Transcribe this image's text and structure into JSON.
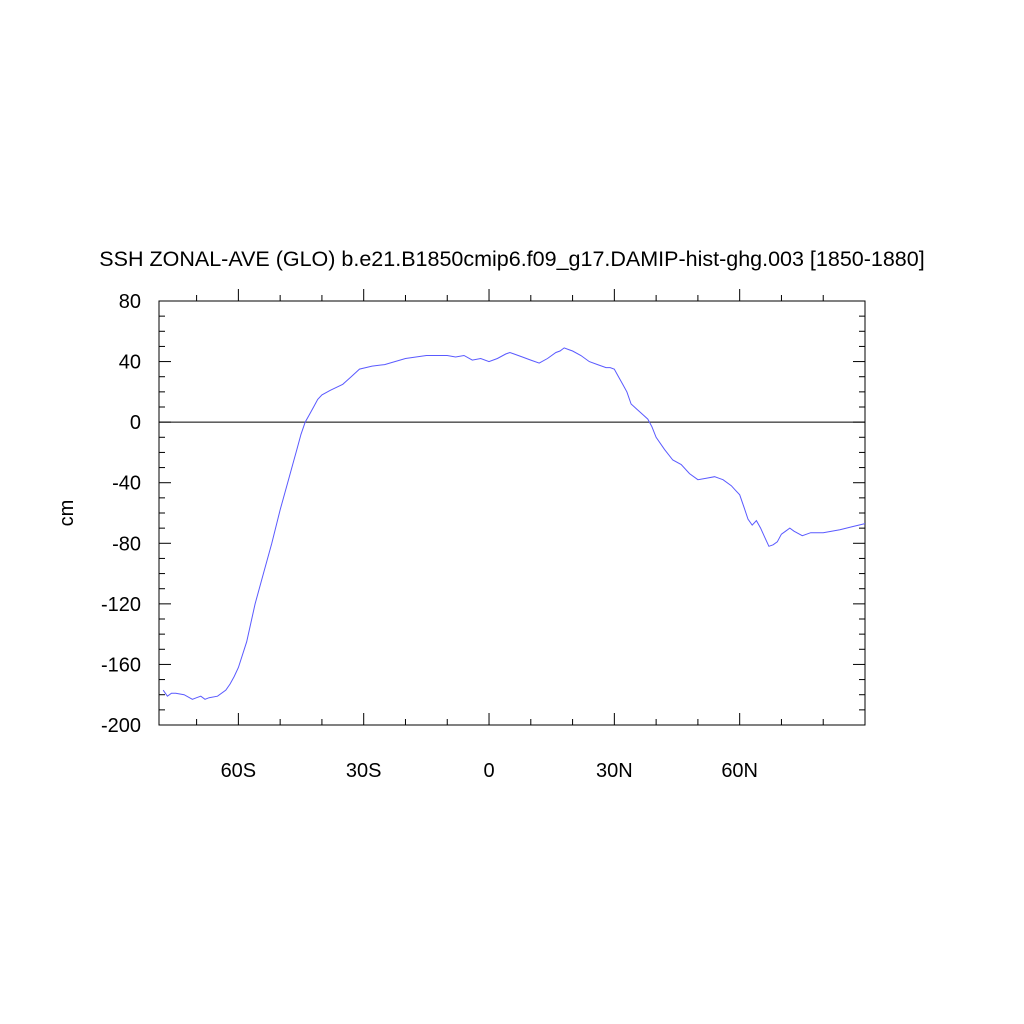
{
  "chart_data": {
    "type": "line",
    "title": "SSH ZONAL-AVE (GLO) b.e21.B1850cmip6.f09_g17.DAMIP-hist-ghg.003 [1850-1880]",
    "xlabel": "",
    "ylabel": "cm",
    "xlim": [
      -79,
      90
    ],
    "ylim": [
      -200,
      80
    ],
    "x_ticks": [
      {
        "value": -60,
        "label": "60S"
      },
      {
        "value": -30,
        "label": "30S"
      },
      {
        "value": 0,
        "label": "0"
      },
      {
        "value": 30,
        "label": "30N"
      },
      {
        "value": 60,
        "label": "60N"
      }
    ],
    "y_ticks": [
      {
        "value": 80,
        "label": "80"
      },
      {
        "value": 40,
        "label": "40"
      },
      {
        "value": 0,
        "label": "0"
      },
      {
        "value": -40,
        "label": "-40"
      },
      {
        "value": -80,
        "label": "-80"
      },
      {
        "value": -120,
        "label": "-120"
      },
      {
        "value": -160,
        "label": "-160"
      },
      {
        "value": -200,
        "label": "-200"
      }
    ],
    "reference_line": 0,
    "grid": false,
    "series": [
      {
        "color": "#5a5aff",
        "x": [
          -78,
          -77,
          -76,
          -75,
          -73,
          -71,
          -70,
          -69,
          -68,
          -67,
          -65,
          -63,
          -62,
          -61,
          -60,
          -58,
          -56,
          -54,
          -52,
          -50,
          -48,
          -47,
          -46,
          -45,
          -44,
          -43,
          -42,
          -41,
          -40,
          -38,
          -35,
          -33,
          -31,
          -28,
          -25,
          -20,
          -15,
          -10,
          -8,
          -6,
          -4,
          -2,
          0,
          2,
          4,
          5,
          6,
          8,
          10,
          12,
          14,
          16,
          17,
          18,
          19,
          20,
          22,
          24,
          26,
          28,
          29,
          30,
          31,
          32,
          33,
          34,
          36,
          38,
          39,
          40,
          42,
          44,
          46,
          48,
          50,
          52,
          54,
          55,
          56,
          58,
          59,
          60,
          61,
          62,
          63,
          64,
          65,
          66,
          67,
          68,
          69,
          70,
          71,
          72,
          73,
          75,
          77,
          80,
          84,
          87,
          90
        ],
        "y": [
          -177,
          -181,
          -179,
          -179,
          -180,
          -183,
          -182,
          -181,
          -183,
          -182,
          -181,
          -177,
          -173,
          -168,
          -162,
          -145,
          -120,
          -100,
          -80,
          -58,
          -38,
          -28,
          -18,
          -8,
          0,
          5,
          10,
          15,
          18,
          21,
          25,
          30,
          35,
          37,
          38,
          42,
          44,
          44,
          43,
          44,
          41,
          42,
          40,
          42,
          45,
          46,
          45,
          43,
          41,
          39,
          42,
          46,
          47,
          49,
          48,
          47,
          44,
          40,
          38,
          36,
          36,
          35,
          30,
          25,
          20,
          12,
          7,
          2,
          -3,
          -10,
          -18,
          -25,
          -28,
          -34,
          -38,
          -37,
          -36,
          -37,
          -38,
          -42,
          -45,
          -48,
          -56,
          -64,
          -68,
          -65,
          -70,
          -76,
          -82,
          -81,
          -79,
          -74,
          -72,
          -70,
          -72,
          -75,
          -73,
          -73,
          -71,
          -69,
          -67
        ]
      }
    ]
  }
}
